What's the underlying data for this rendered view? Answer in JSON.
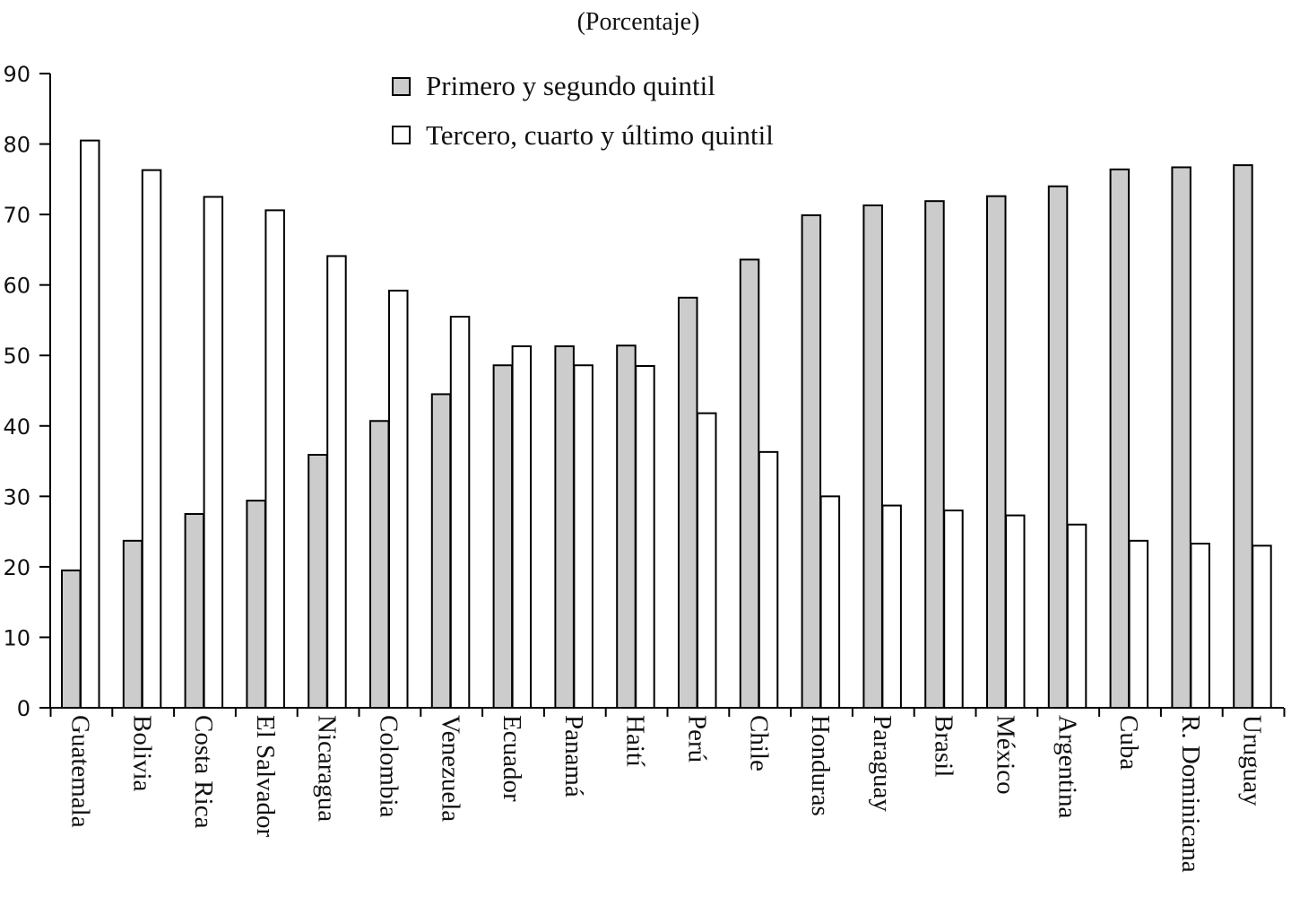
{
  "chart_data": {
    "type": "bar",
    "subtitle": "(Porcentaje)",
    "ylim": [
      0,
      90
    ],
    "yticks": [
      "0",
      "10",
      "20",
      "30",
      "40",
      "50",
      "60",
      "70",
      "80",
      "90"
    ],
    "legend_position": "top-center",
    "categories": [
      "Guatemala",
      "Bolivia",
      "Costa Rica",
      "El Salvador",
      "Nicaragua",
      "Colombia",
      "Venezuela",
      "Ecuador",
      "Panamá",
      "Haití",
      "Perú",
      "Chile",
      "Honduras",
      "Paraguay",
      "Brasil",
      "México",
      "Argentina",
      "Cuba",
      "R. Dominicana",
      "Uruguay"
    ],
    "series": [
      {
        "name": "Primero y segundo quintil",
        "color": "#cccccc",
        "values": [
          19.5,
          23.7,
          27.5,
          29.4,
          35.9,
          40.7,
          44.5,
          48.6,
          51.3,
          51.4,
          58.2,
          63.6,
          69.9,
          71.3,
          71.9,
          72.6,
          74.0,
          76.4,
          76.7,
          77.0
        ]
      },
      {
        "name": "Tercero, cuarto y último quintil",
        "color": "#ffffff",
        "values": [
          80.5,
          76.3,
          72.5,
          70.6,
          64.1,
          59.2,
          55.5,
          51.3,
          48.6,
          48.5,
          41.8,
          36.3,
          30.0,
          28.7,
          28.0,
          27.3,
          26.0,
          23.7,
          23.3,
          23.0
        ]
      }
    ]
  }
}
